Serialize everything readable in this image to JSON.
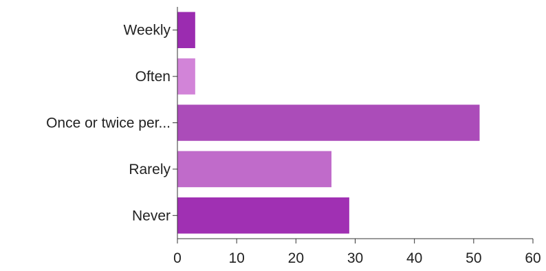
{
  "chart_data": {
    "type": "bar",
    "orientation": "horizontal",
    "categories": [
      "Weekly",
      "Often",
      "Once or twice per...",
      "Rarely",
      "Never"
    ],
    "values": [
      3,
      3,
      51,
      26,
      29
    ],
    "xlim": [
      0,
      60
    ],
    "xticks": [
      0,
      10,
      20,
      30,
      40,
      50,
      60
    ],
    "title": "",
    "xlabel": "",
    "ylabel": "",
    "grid": false,
    "legend": "none",
    "colors": [
      "#9b2cb0",
      "#d284d8",
      "#ab4cb9",
      "#c06bca",
      "#a030b3"
    ]
  }
}
